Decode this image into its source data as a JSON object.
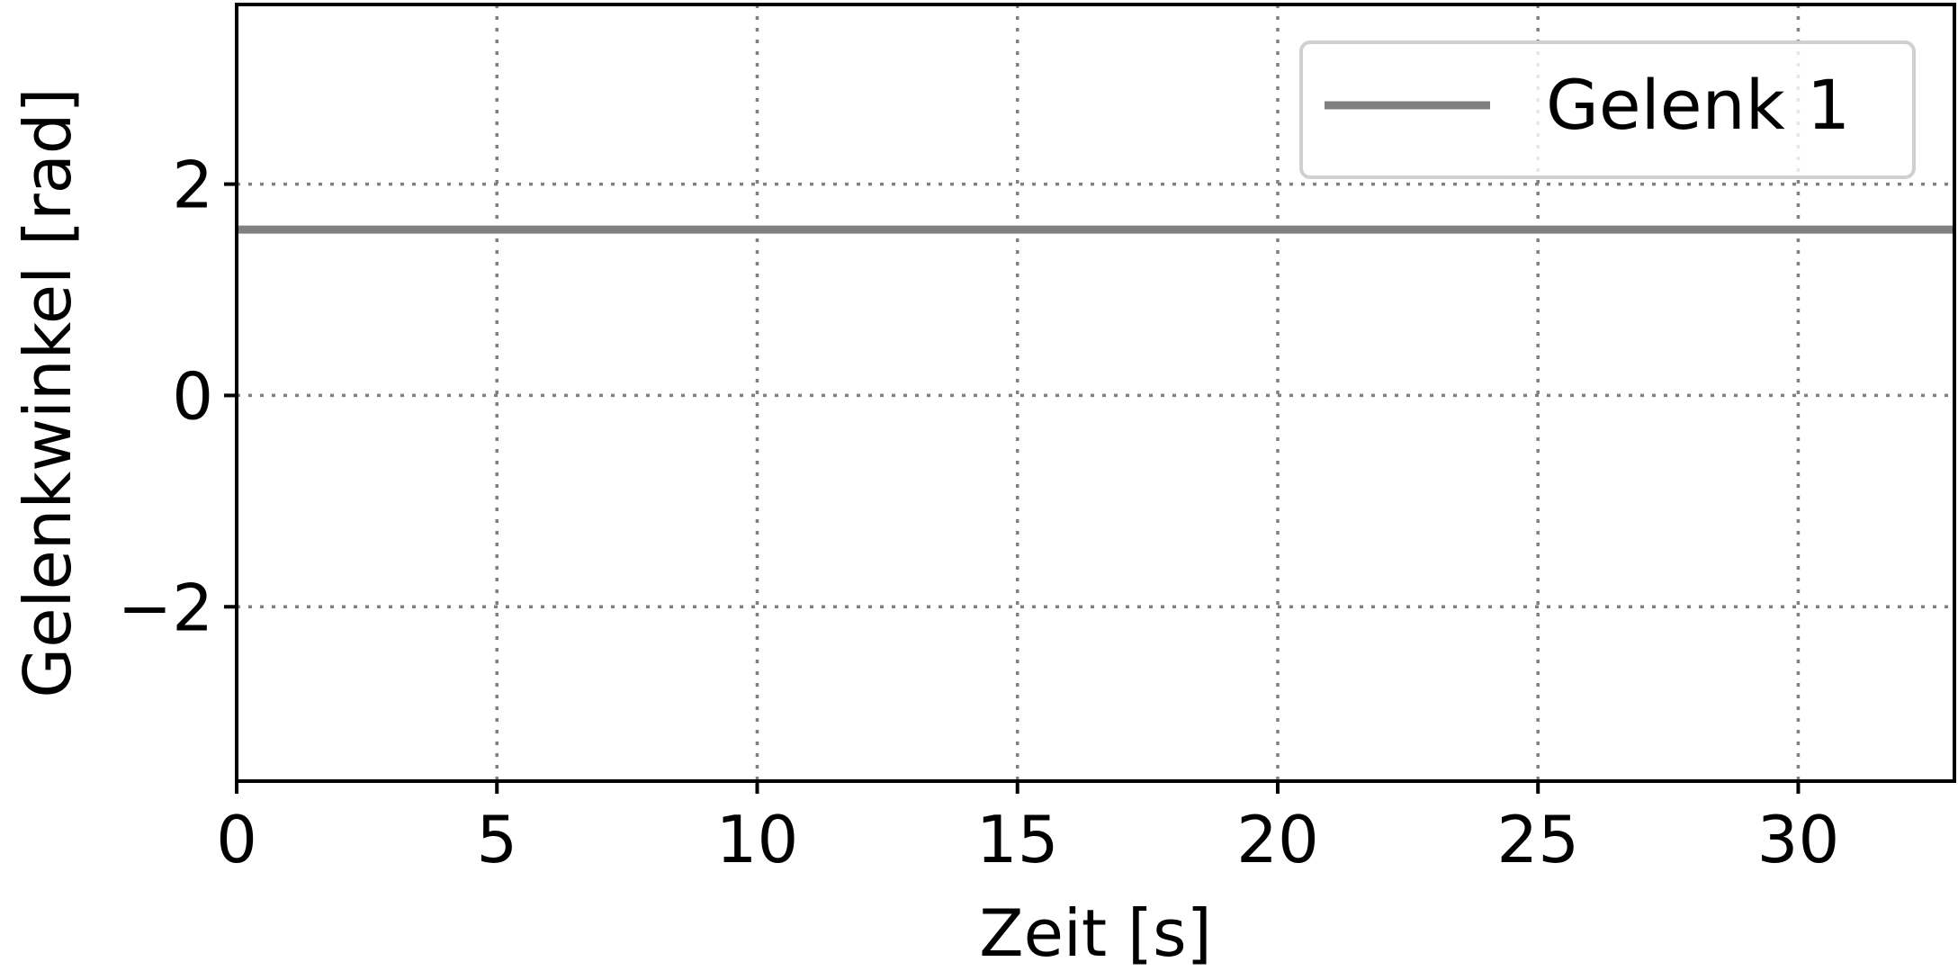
{
  "chart_data": {
    "type": "line",
    "title": "",
    "xlabel": "Zeit [s]",
    "ylabel": "Gelenkwinkel [rad]",
    "xlim": [
      0,
      33
    ],
    "ylim": [
      -3.65,
      3.7
    ],
    "x_ticks": [
      0,
      5,
      10,
      15,
      20,
      25,
      30
    ],
    "x_tick_labels": [
      "0",
      "5",
      "10",
      "15",
      "20",
      "25",
      "30"
    ],
    "y_ticks": [
      -2,
      0,
      2
    ],
    "y_tick_labels": [
      "−2",
      "0",
      "2"
    ],
    "grid": true,
    "legend_position": "top-right",
    "series": [
      {
        "name": "Gelenk 1",
        "color": "#808080",
        "x": [
          0,
          33
        ],
        "y": [
          1.57,
          1.57
        ]
      }
    ]
  }
}
